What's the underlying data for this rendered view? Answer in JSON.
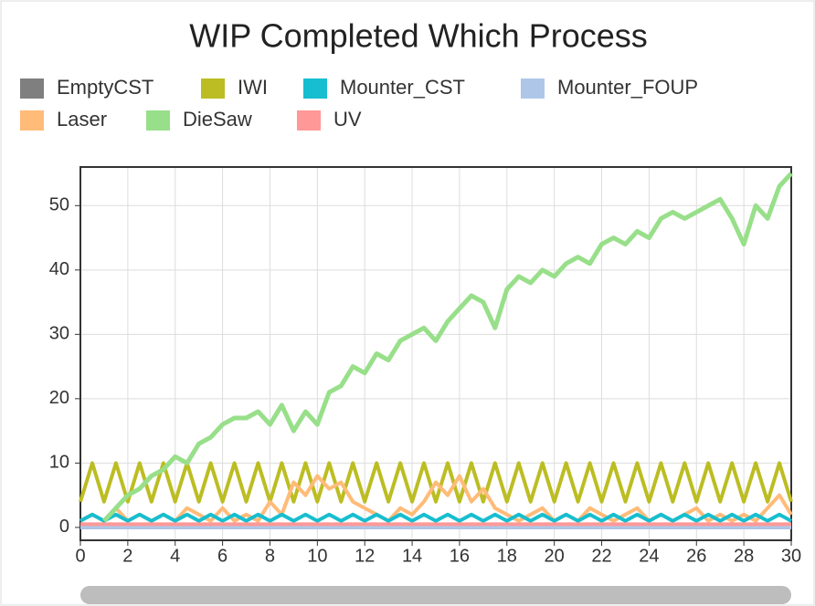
{
  "chart_data": {
    "type": "line",
    "title": "WIP Completed Which Process",
    "x": [
      0,
      0.5,
      1,
      1.5,
      2,
      2.5,
      3,
      3.5,
      4,
      4.5,
      5,
      5.5,
      6,
      6.5,
      7,
      7.5,
      8,
      8.5,
      9,
      9.5,
      10,
      10.5,
      11,
      11.5,
      12,
      12.5,
      13,
      13.5,
      14,
      14.5,
      15,
      15.5,
      16,
      16.5,
      17,
      17.5,
      18,
      18.5,
      19,
      19.5,
      20,
      20.5,
      21,
      21.5,
      22,
      22.5,
      23,
      23.5,
      24,
      24.5,
      25,
      25.5,
      26,
      26.5,
      27,
      27.5,
      28,
      28.5,
      29,
      29.5,
      30
    ],
    "series": [
      {
        "name": "EmptyCST",
        "color": "#7f7f7f",
        "values": [
          0,
          0,
          0,
          0,
          0,
          0,
          0,
          0,
          0,
          0,
          0,
          0,
          0,
          0,
          0,
          0,
          0,
          0,
          0,
          0,
          0,
          0,
          0,
          0,
          0,
          0,
          0,
          0,
          0,
          0,
          0,
          0,
          0,
          0,
          0,
          0,
          0,
          0,
          0,
          0,
          0,
          0,
          0,
          0,
          0,
          0,
          0,
          0,
          0,
          0,
          0,
          0,
          0,
          0,
          0,
          0,
          0,
          0,
          0,
          0,
          0
        ]
      },
      {
        "name": "IWI",
        "color": "#bcbd22",
        "values": [
          4,
          10,
          4,
          10,
          4,
          10,
          4,
          10,
          4,
          10,
          4,
          10,
          4,
          10,
          4,
          10,
          4,
          10,
          4,
          10,
          4,
          10,
          4,
          10,
          4,
          10,
          4,
          10,
          4,
          10,
          4,
          10,
          4,
          10,
          4,
          10,
          4,
          10,
          4,
          10,
          4,
          10,
          4,
          10,
          4,
          10,
          4,
          10,
          4,
          10,
          4,
          10,
          4,
          10,
          4,
          10,
          4,
          10,
          4,
          10,
          4
        ]
      },
      {
        "name": "Mounter_CST",
        "color": "#17becf",
        "values": [
          1,
          2,
          1,
          2,
          1,
          2,
          1,
          2,
          1,
          2,
          1,
          2,
          1,
          2,
          1,
          2,
          1,
          2,
          1,
          2,
          1,
          2,
          1,
          2,
          1,
          2,
          1,
          2,
          1,
          2,
          1,
          2,
          1,
          2,
          1,
          2,
          1,
          2,
          1,
          2,
          1,
          2,
          1,
          2,
          1,
          2,
          1,
          2,
          1,
          2,
          1,
          2,
          1,
          2,
          1,
          2,
          1,
          2,
          1,
          2,
          1
        ]
      },
      {
        "name": "Mounter_FOUP",
        "color": "#aec7e8",
        "values": [
          0,
          0,
          0,
          0,
          0,
          0,
          0,
          0,
          0,
          0,
          0,
          0,
          0,
          0,
          0,
          0,
          0,
          0,
          0,
          0,
          0,
          0,
          0,
          0,
          0,
          0,
          0,
          0,
          0,
          0,
          0,
          0,
          0,
          0,
          0,
          0,
          0,
          0,
          0,
          0,
          0,
          0,
          0,
          0,
          0,
          0,
          0,
          0,
          0,
          0,
          0,
          0,
          0,
          0,
          0,
          0,
          0,
          0,
          0,
          0,
          0
        ]
      },
      {
        "name": "Laser",
        "color": "#ffbb78",
        "values": [
          1,
          2,
          1,
          3,
          1,
          2,
          1,
          2,
          1,
          3,
          2,
          1,
          3,
          1,
          2,
          1,
          4,
          2,
          7,
          5,
          8,
          6,
          7,
          4,
          3,
          2,
          1,
          3,
          2,
          4,
          7,
          5,
          8,
          4,
          6,
          3,
          2,
          1,
          2,
          3,
          1,
          2,
          1,
          3,
          2,
          1,
          2,
          3,
          1,
          2,
          1,
          2,
          3,
          1,
          2,
          1,
          2,
          1,
          3,
          5,
          2
        ]
      },
      {
        "name": "DieSaw",
        "color": "#98df8a",
        "values": [
          null,
          null,
          1,
          3,
          5,
          6,
          8,
          9,
          11,
          10,
          13,
          14,
          16,
          17,
          17,
          18,
          16,
          19,
          15,
          18,
          16,
          21,
          22,
          25,
          24,
          27,
          26,
          29,
          30,
          31,
          29,
          32,
          34,
          36,
          35,
          31,
          37,
          39,
          38,
          40,
          39,
          41,
          42,
          41,
          44,
          45,
          44,
          46,
          45,
          48,
          49,
          48,
          49,
          50,
          51,
          48,
          44,
          50,
          48,
          53,
          55
        ]
      },
      {
        "name": "UV",
        "color": "#ff9896",
        "values": [
          0.5,
          0.5,
          0.5,
          0.5,
          0.5,
          0.5,
          0.5,
          0.5,
          0.5,
          0.5,
          0.5,
          0.5,
          0.5,
          0.5,
          0.5,
          0.5,
          0.5,
          0.5,
          0.5,
          0.5,
          0.5,
          0.5,
          0.5,
          0.5,
          0.5,
          0.5,
          0.5,
          0.5,
          0.5,
          0.5,
          0.5,
          0.5,
          0.5,
          0.5,
          0.5,
          0.5,
          0.5,
          0.5,
          0.5,
          0.5,
          0.5,
          0.5,
          0.5,
          0.5,
          0.5,
          0.5,
          0.5,
          0.5,
          0.5,
          0.5,
          0.5,
          0.5,
          0.5,
          0.5,
          0.5,
          0.5,
          0.5,
          0.5,
          0.5,
          0.5,
          0.5
        ]
      }
    ],
    "xlim": [
      0,
      30
    ],
    "xticks": [
      0,
      2,
      4,
      6,
      8,
      10,
      12,
      14,
      16,
      18,
      20,
      22,
      24,
      26,
      28,
      30
    ],
    "ylim": [
      -2,
      56
    ],
    "yticks": [
      0,
      10,
      20,
      30,
      40,
      50
    ],
    "grid": true,
    "legend": "top"
  }
}
